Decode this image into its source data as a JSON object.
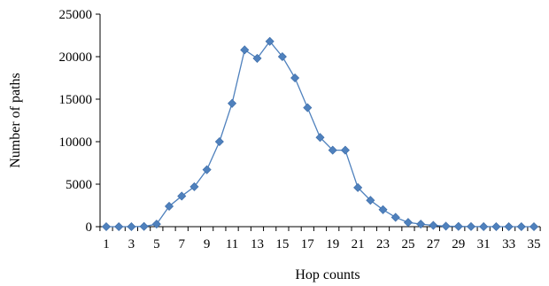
{
  "chart_data": {
    "type": "line",
    "title": "",
    "xlabel": "Hop counts",
    "ylabel": "Number of paths",
    "x": [
      1,
      2,
      3,
      4,
      5,
      6,
      7,
      8,
      9,
      10,
      11,
      12,
      13,
      14,
      15,
      16,
      17,
      18,
      19,
      20,
      21,
      22,
      23,
      24,
      25,
      26,
      27,
      28,
      29,
      30,
      31,
      32,
      33,
      34,
      35
    ],
    "series": [
      {
        "values": [
          0,
          0,
          0,
          30,
          300,
          2400,
          3600,
          4700,
          6700,
          10000,
          14500,
          20800,
          19800,
          21800,
          20000,
          17500,
          14000,
          10500,
          9000,
          9000,
          4600,
          3100,
          2000,
          1100,
          500,
          300,
          150,
          60,
          30,
          10,
          5,
          0,
          0,
          0,
          0
        ]
      }
    ],
    "xticks": [
      "1",
      "3",
      "5",
      "7",
      "9",
      "11",
      "13",
      "15",
      "17",
      "19",
      "21",
      "23",
      "25",
      "27",
      "29",
      "31",
      "33",
      "35"
    ],
    "yticks": [
      "0",
      "5000",
      "10000",
      "15000",
      "20000",
      "25000"
    ],
    "xlim": [
      1,
      35
    ],
    "ylim": [
      0,
      25000
    ],
    "grid": false,
    "legend": "none",
    "colors": {
      "line": "#4f81bd",
      "marker": "#4f81bd",
      "axis": "#000000"
    }
  }
}
